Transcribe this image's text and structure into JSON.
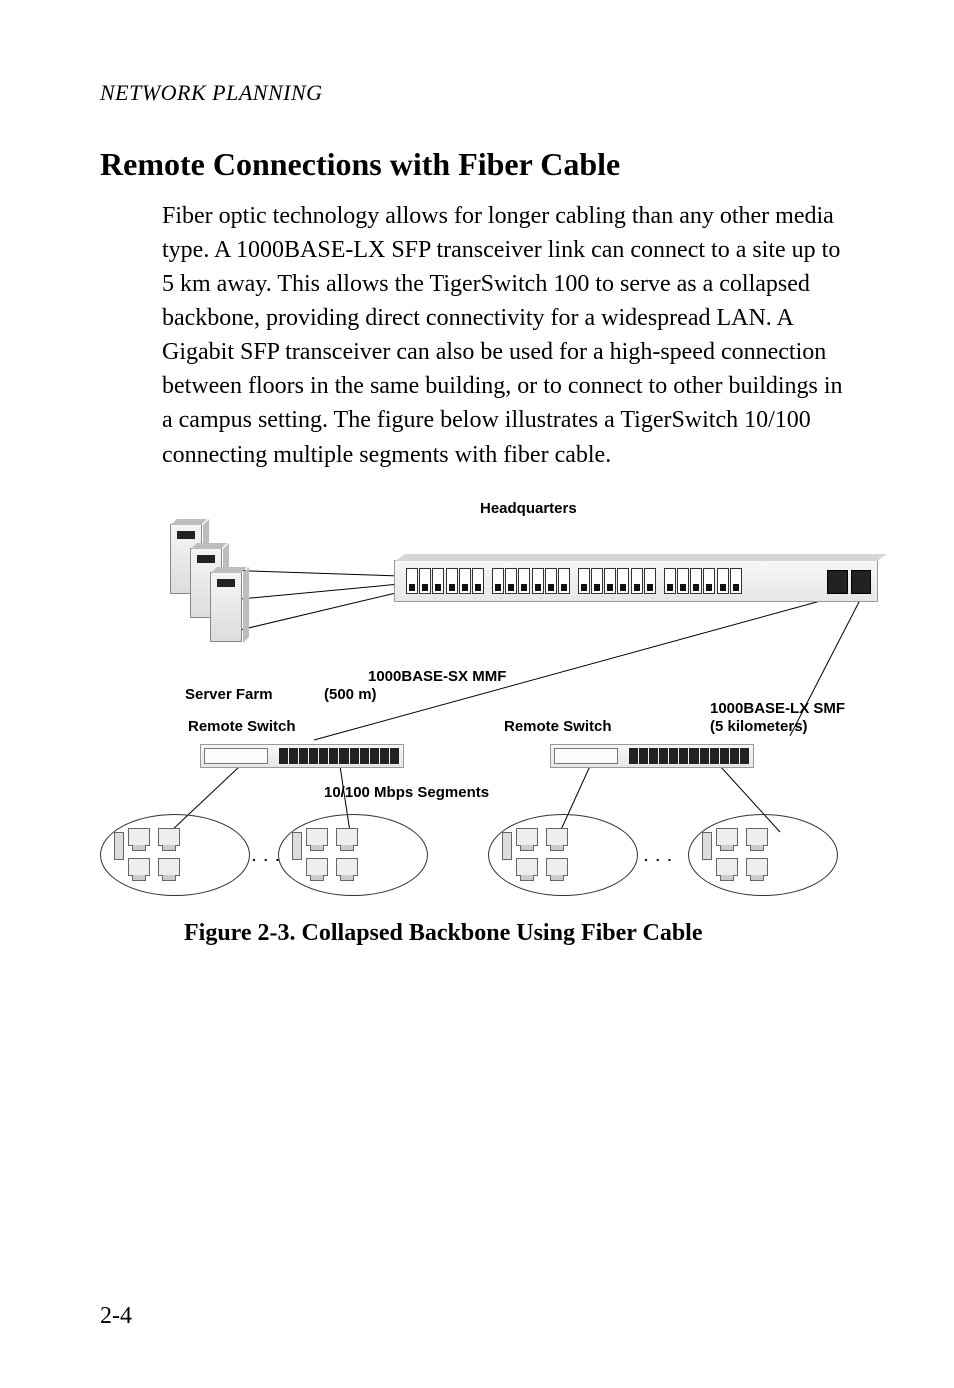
{
  "running_head": "NETWORK PLANNING",
  "section_title": "Remote Connections with Fiber Cable",
  "body_paragraph": "Fiber optic technology allows for longer cabling than any other media type. A 1000BASE-LX SFP transceiver link can connect to a site up to 5 km away. This allows the TigerSwitch 100 to serve as a collapsed backbone, providing direct connectivity for a widespread LAN. A Gigabit SFP transceiver can also be used for a high-speed connection between floors in the same building, or to connect to other buildings in a campus setting. The figure below illustrates a TigerSwitch 10/100 connecting multiple segments with fiber cable.",
  "figure": {
    "labels": {
      "headquarters": "Headquarters",
      "server_farm": "Server Farm",
      "mmf": "1000BASE-SX MMF",
      "mmf_sub": "(500 m)",
      "remote_switch": "Remote Switch",
      "smf": "1000BASE-LX SMF",
      "smf_sub": "(5 kilometers)",
      "segments": "10/100 Mbps Segments"
    },
    "caption": "Figure 2-3.  Collapsed Backbone Using Fiber Cable",
    "ellipsis": ". . .",
    "colors": {
      "line": "#000000",
      "device_fill": "#eeeeee",
      "device_stroke": "#888888"
    },
    "port_groups": 4,
    "ports_per_group": 6
  },
  "page_number": "2-4"
}
